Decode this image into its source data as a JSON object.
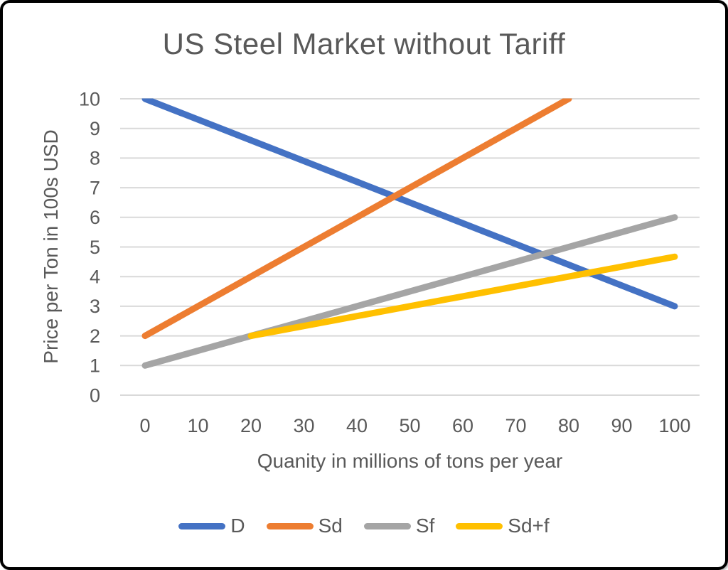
{
  "frame": {
    "background": "#FFFFFF",
    "border_color": "#000000"
  },
  "chart_data": {
    "type": "line",
    "title": "US Steel Market without Tariff",
    "xlabel": "Quanity in millions of tons per year",
    "ylabel": "Price per Ton in 100s USD",
    "xlim": [
      0,
      100
    ],
    "ylim": [
      0,
      10
    ],
    "x_ticks": [
      0,
      10,
      20,
      30,
      40,
      50,
      60,
      70,
      80,
      90,
      100
    ],
    "y_ticks": [
      0,
      1,
      2,
      3,
      4,
      5,
      6,
      7,
      8,
      9,
      10
    ],
    "grid": "horizontal-only",
    "legend_position": "bottom",
    "series": [
      {
        "name": "D",
        "color": "#4472C4",
        "points": [
          [
            0,
            10
          ],
          [
            100,
            3
          ]
        ]
      },
      {
        "name": "Sd",
        "color": "#ED7D31",
        "points": [
          [
            0,
            2
          ],
          [
            80,
            10
          ]
        ]
      },
      {
        "name": "Sf",
        "color": "#A5A5A5",
        "points": [
          [
            0,
            1
          ],
          [
            100,
            6
          ]
        ]
      },
      {
        "name": "Sd+f",
        "color": "#FFC000",
        "points": [
          [
            20,
            2
          ],
          [
            100,
            4.67
          ]
        ]
      }
    ],
    "colors": {
      "text": "#595959",
      "gridline": "#D9D9D9"
    }
  }
}
